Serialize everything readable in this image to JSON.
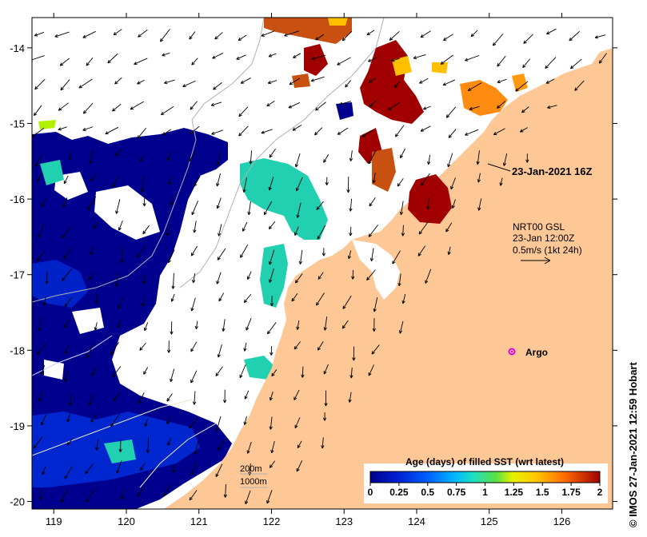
{
  "map": {
    "lon_range": [
      118.7,
      126.7
    ],
    "lat_range": [
      -20.1,
      -13.6
    ],
    "x_ticks": [
      119,
      120,
      121,
      122,
      123,
      124,
      125,
      126
    ],
    "y_ticks": [
      -14,
      -15,
      -16,
      -17,
      -18,
      -19,
      -20
    ],
    "colors": {
      "land": "#fdc896",
      "ocean": "#ffffff",
      "frame": "#000000",
      "isobath": "#b0b0b0",
      "vector": "#000000",
      "argo": "#e000e0"
    }
  },
  "annotations": {
    "timestamp": "23-Jan-2021 16Z",
    "vector_source": "NRT00 GSL",
    "vector_time": "23-Jan 12:00Z",
    "vector_scale": "0.5m/s (1kt 24h)",
    "argo_label": "Argo",
    "isobath_200": "200m",
    "isobath_1000": "1000m",
    "credit": "© IMOS 27-Jan-2021 12:59 Hobart"
  },
  "colorbar": {
    "title": "Age (days) of filled SST (wrt latest)",
    "tick_labels": [
      "0",
      "0.25",
      "0.5",
      "0.75",
      "1",
      "1.25",
      "1.5",
      "1.75",
      "2"
    ],
    "range": [
      0,
      2
    ],
    "stops": [
      "#00008f",
      "#0033ff",
      "#00b4ff",
      "#20e0c0",
      "#5ce040",
      "#e6f200",
      "#ffc800",
      "#ff6a00",
      "#a00000"
    ]
  }
}
